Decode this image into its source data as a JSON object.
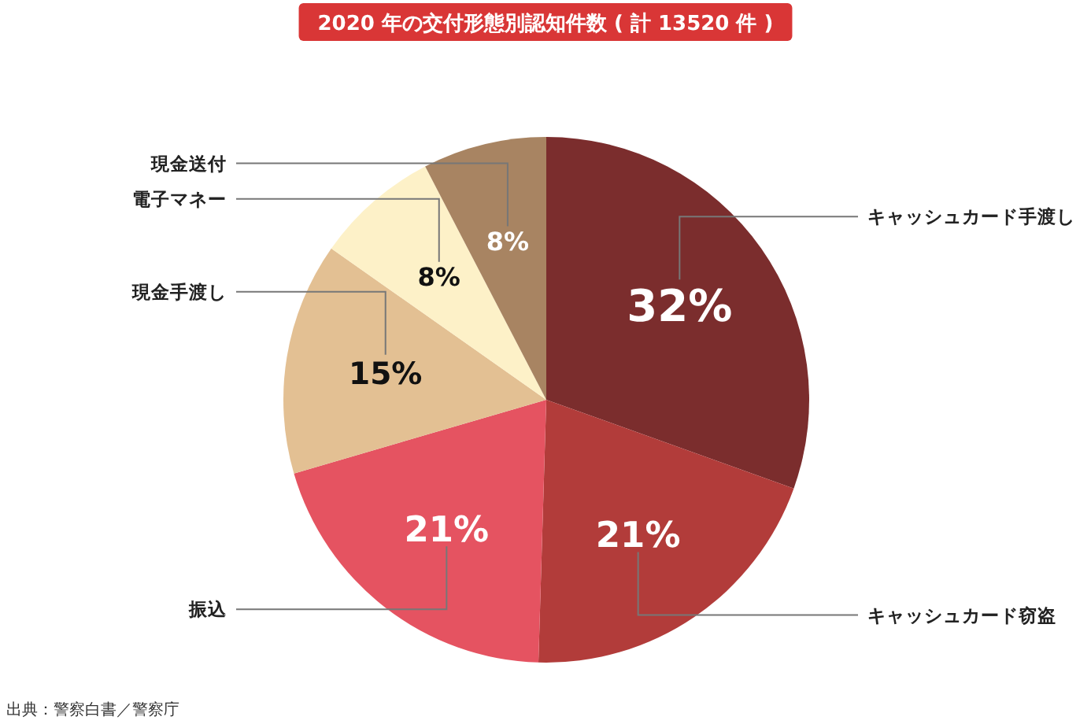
{
  "chart_data": {
    "type": "pie",
    "title": "2020 年の交付形態別認知件数 ( 計 13520 件 )",
    "categories": [
      "キャッシュカード手渡し",
      "キャッシュカード窃盗",
      "振込",
      "現金手渡し",
      "電子マネー",
      "現金送付"
    ],
    "values": [
      32,
      21,
      21,
      15,
      8,
      8
    ],
    "colors": [
      "#7b2d2d",
      "#b23c3a",
      "#e55361",
      "#e3c093",
      "#fdf1c8",
      "#a88462"
    ],
    "value_labels": [
      "32%",
      "21%",
      "21%",
      "15%",
      "8%",
      "8%"
    ],
    "annotations": [
      "出典：警察白書／警察庁"
    ]
  }
}
